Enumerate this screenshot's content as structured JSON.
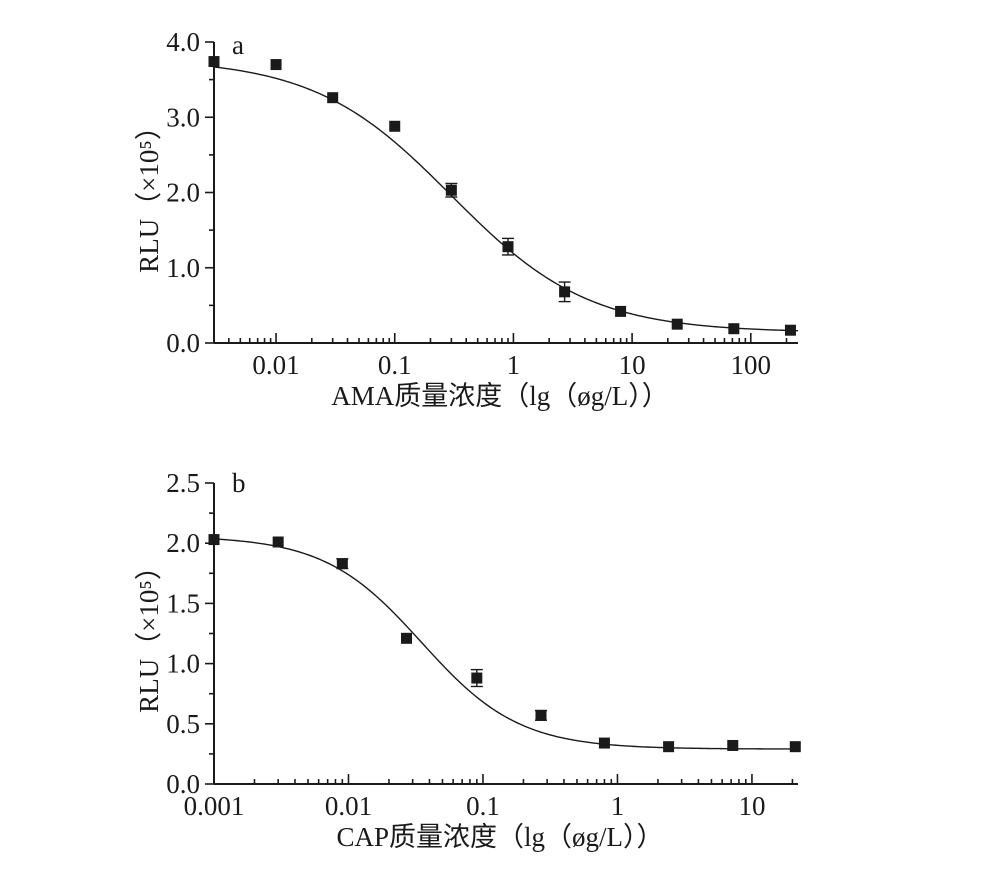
{
  "chart_data": [
    {
      "type": "scatter",
      "panel_label": "a",
      "xlabel": "AMA质量浓度（lg（øg/L））",
      "ylabel": "RLU（×10⁵）",
      "x_scale": "log",
      "xlim": [
        0.003,
        250
      ],
      "ylim": [
        0,
        4.0
      ],
      "x_ticks": [
        {
          "value": 0.01,
          "label": "0.01"
        },
        {
          "value": 0.1,
          "label": "0.1"
        },
        {
          "value": 1,
          "label": "1"
        },
        {
          "value": 10,
          "label": "10"
        },
        {
          "value": 100,
          "label": "100"
        }
      ],
      "y_ticks": [
        {
          "value": 0,
          "label": "0.0"
        },
        {
          "value": 1,
          "label": "1.0"
        },
        {
          "value": 2,
          "label": "2.0"
        },
        {
          "value": 3,
          "label": "3.0"
        },
        {
          "value": 4,
          "label": "4.0"
        }
      ],
      "grid": false,
      "series": [
        {
          "marker": "square",
          "x": [
            0.003,
            0.01,
            0.03,
            0.1,
            0.3,
            0.9,
            2.7,
            8,
            24,
            72,
            216
          ],
          "y": [
            3.74,
            3.7,
            3.26,
            2.88,
            2.03,
            1.28,
            0.68,
            0.42,
            0.25,
            0.19,
            0.17
          ],
          "err": [
            0.03,
            0.04,
            0.04,
            0.05,
            0.09,
            0.11,
            0.13,
            0.05,
            0.03,
            0.03,
            0.03
          ]
        }
      ],
      "fit": {
        "top": 3.78,
        "bottom": 0.14,
        "ec50": 0.3,
        "hill": 0.75
      }
    },
    {
      "type": "scatter",
      "panel_label": "b",
      "xlabel": "CAP质量浓度（lg（øg/L））",
      "ylabel": "RLU（×10⁵）",
      "x_scale": "log",
      "xlim": [
        0.001,
        22
      ],
      "ylim": [
        0,
        2.5
      ],
      "x_ticks": [
        {
          "value": 0.001,
          "label": "0.001"
        },
        {
          "value": 0.01,
          "label": "0.01"
        },
        {
          "value": 0.1,
          "label": "0.1"
        },
        {
          "value": 1,
          "label": "1"
        },
        {
          "value": 10,
          "label": "10"
        }
      ],
      "y_ticks": [
        {
          "value": 0,
          "label": "0.0"
        },
        {
          "value": 0.5,
          "label": "0.5"
        },
        {
          "value": 1,
          "label": "1.0"
        },
        {
          "value": 1.5,
          "label": "1.5"
        },
        {
          "value": 2,
          "label": "2.0"
        },
        {
          "value": 2.5,
          "label": "2.5"
        }
      ],
      "grid": false,
      "series": [
        {
          "marker": "square",
          "x": [
            0.001,
            0.003,
            0.009,
            0.027,
            0.09,
            0.27,
            0.8,
            2.4,
            7.2,
            21
          ],
          "y": [
            2.03,
            2.01,
            1.83,
            1.21,
            0.88,
            0.57,
            0.34,
            0.31,
            0.32,
            0.31
          ],
          "err": [
            0.02,
            0.03,
            0.04,
            0.03,
            0.07,
            0.04,
            0.02,
            0.02,
            0.03,
            0.02
          ]
        }
      ],
      "fit": {
        "top": 2.06,
        "bottom": 0.29,
        "ec50": 0.035,
        "hill": 1.2
      }
    }
  ]
}
